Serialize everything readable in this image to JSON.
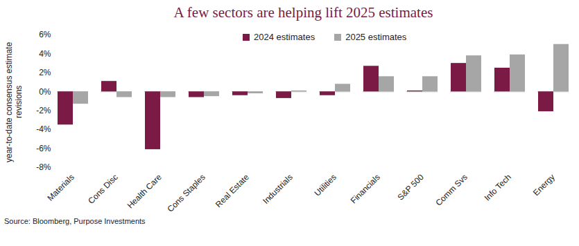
{
  "chart_data": {
    "type": "bar",
    "title": "A few sectors are helping lift 2025 estimates",
    "y_label": "year-to-date consensus estimate revisions",
    "source": "Source: Bloomberg, Purpose Investments",
    "categories": [
      "Materials",
      "Cons Disc",
      "Health Care",
      "Cons Staples",
      "Real Estate",
      "Industrials",
      "Utilities",
      "Financials",
      "S&P 500",
      "Comm Svs",
      "Info Tech",
      "Energy"
    ],
    "series": [
      {
        "name": "2024 estimates",
        "color": "#7a1a45",
        "values": [
          -3.5,
          1.1,
          -6.1,
          -0.6,
          -0.4,
          -0.7,
          -0.4,
          2.7,
          0.1,
          3.0,
          2.5,
          -2.1
        ]
      },
      {
        "name": "2025 estimates",
        "color": "#a6a6a6",
        "values": [
          -1.3,
          -0.6,
          -0.6,
          -0.5,
          -0.2,
          0.1,
          0.8,
          1.6,
          1.6,
          3.8,
          3.9,
          5.0
        ]
      }
    ],
    "ylim": [
      -8,
      6
    ],
    "yticks": [
      {
        "value": -8,
        "label": "-8%"
      },
      {
        "value": -6,
        "label": "-6%"
      },
      {
        "value": -4,
        "label": "-4%"
      },
      {
        "value": -2,
        "label": "-2%"
      },
      {
        "value": 0,
        "label": "0%"
      },
      {
        "value": 2,
        "label": "2%"
      },
      {
        "value": 4,
        "label": "4%"
      },
      {
        "value": 6,
        "label": "6%"
      }
    ],
    "grid": false,
    "legend": "top"
  }
}
